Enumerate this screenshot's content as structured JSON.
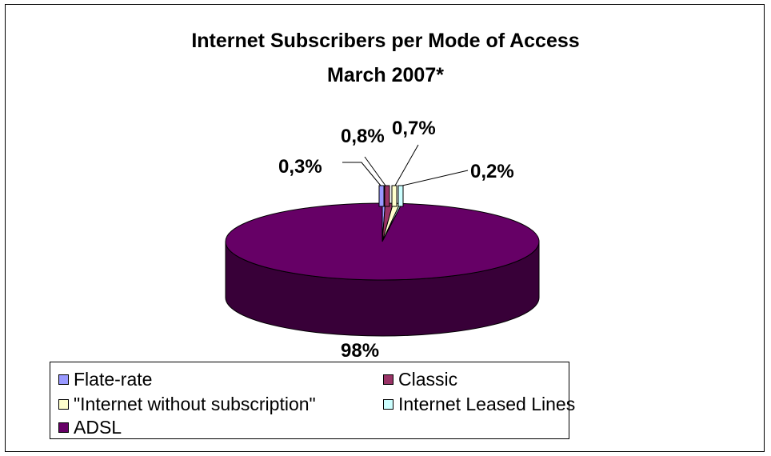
{
  "colors": {
    "flate_rate": "#9999ff",
    "classic": "#993366",
    "internet_without_subscription": "#ffffcc",
    "internet_leased_lines": "#ccffff",
    "adsl": "#660066"
  },
  "chart_data": {
    "type": "pie",
    "title": "Internet Subscribers per Mode of Access",
    "subtitle": "March 2007*",
    "three_d": true,
    "legend_position": "bottom",
    "slices": [
      {
        "name": "Flate-rate",
        "value": 0.3,
        "label": "0,3%"
      },
      {
        "name": "Classic",
        "value": 0.8,
        "label": "0,8%"
      },
      {
        "name": "\"Internet without subscription\"",
        "value": 0.7,
        "label": "0,7%"
      },
      {
        "name": "Internet Leased Lines",
        "value": 0.2,
        "label": "0,2%"
      },
      {
        "name": "ADSL",
        "value": 98,
        "label": "98%"
      }
    ]
  }
}
